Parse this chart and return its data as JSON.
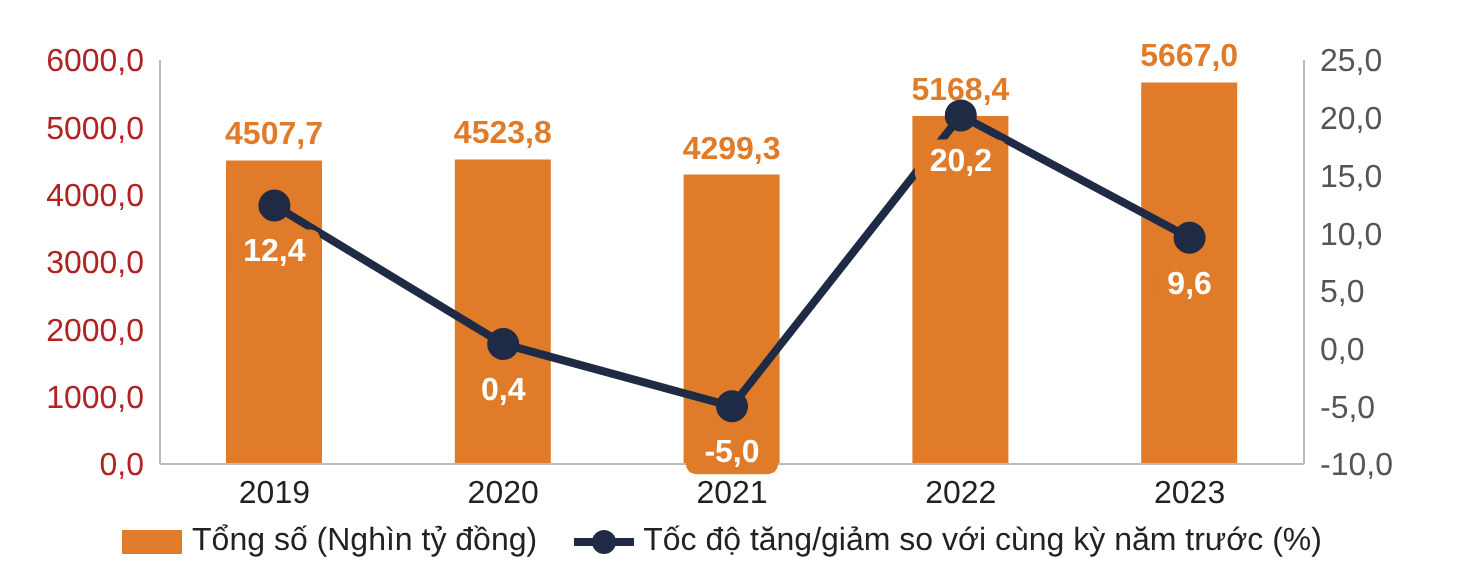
{
  "chart_data": {
    "type": "bar",
    "categories": [
      "2019",
      "2020",
      "2021",
      "2022",
      "2023"
    ],
    "series": [
      {
        "name": "Tổng số (Nghìn tỷ đồng)",
        "color": "#e07b2a",
        "values": [
          4507.7,
          4523.8,
          4299.3,
          5168.4,
          5667.0
        ],
        "value_labels": [
          "4507,7",
          "4523,8",
          "4299,3",
          "5168,4",
          "5667,0"
        ]
      },
      {
        "name": "Tốc độ tăng/giảm so với cùng kỳ năm trước (%)",
        "type": "line",
        "axis": "y2",
        "color": "#1f2a44",
        "marker": "circle",
        "values": [
          12.4,
          0.4,
          -5.0,
          20.2,
          9.6
        ],
        "value_labels": [
          "12,4",
          "0,4",
          "-5,0",
          "20,2",
          "9,6"
        ]
      }
    ],
    "ylim": [
      0,
      6000
    ],
    "yticks": [
      {
        "value": 0,
        "label": "0,0"
      },
      {
        "value": 1000,
        "label": "1000,0"
      },
      {
        "value": 2000,
        "label": "2000,0"
      },
      {
        "value": 3000,
        "label": "3000,0"
      },
      {
        "value": 4000,
        "label": "4000,0"
      },
      {
        "value": 5000,
        "label": "5000,0"
      },
      {
        "value": 6000,
        "label": "6000,0"
      }
    ],
    "y2lim": [
      -10,
      25
    ],
    "y2ticks": [
      {
        "value": -10,
        "label": "-10,0"
      },
      {
        "value": -5,
        "label": "-5,0"
      },
      {
        "value": 0,
        "label": "0,0"
      },
      {
        "value": 5,
        "label": "5,0"
      },
      {
        "value": 10,
        "label": "10,0"
      },
      {
        "value": 15,
        "label": "15,0"
      },
      {
        "value": 20,
        "label": "20,0"
      },
      {
        "value": 25,
        "label": "25,0"
      }
    ],
    "legend": "bottom"
  }
}
